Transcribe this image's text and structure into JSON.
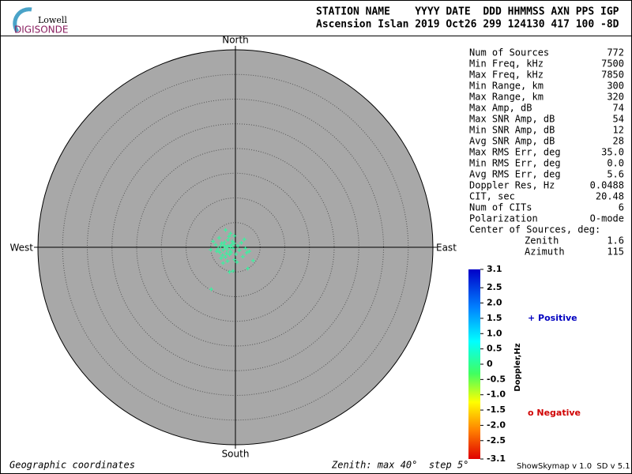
{
  "header": {
    "logo_top": "Lowell",
    "logo_bottom": "DIGISONDE",
    "line1": "STATION NAME    YYYY DATE  DDD HHMMSS AXN PPS IGP",
    "line2": "Ascension Islan 2019 Oct26 299 124130 417 100 -8D"
  },
  "stats": {
    "rows": [
      [
        "Num of Sources",
        "772"
      ],
      [
        "Min Freq, kHz",
        "7500"
      ],
      [
        "Max Freq, kHz",
        "7850"
      ],
      [
        "Min Range, km",
        "300"
      ],
      [
        "Max Range, km",
        "320"
      ],
      [
        "Max Amp, dB",
        "74"
      ],
      [
        "Max SNR Amp, dB",
        "54"
      ],
      [
        "Min SNR Amp, dB",
        "12"
      ],
      [
        "Avg SNR Amp, dB",
        "28"
      ],
      [
        "Max RMS Err, deg",
        "35.0"
      ],
      [
        "Min RMS Err, deg",
        "0.0"
      ],
      [
        "Avg RMS Err, deg",
        "5.6"
      ],
      [
        "Doppler Res, Hz",
        "0.0488"
      ],
      [
        "CIT, sec",
        "20.48"
      ],
      [
        "Num of CITs",
        "6"
      ],
      [
        "Polarization",
        "O-mode"
      ]
    ],
    "center_title": "Center of Sources, deg:",
    "center_rows": [
      [
        "Zenith",
        "1.6"
      ],
      [
        "Azimuth",
        "115"
      ]
    ]
  },
  "colorbar": {
    "label": "Doppler,Hz",
    "lim": [
      -3.1,
      3.1
    ],
    "ticks": [
      3.1,
      2.5,
      {
        "value": 2.0,
        "label": "2.0"
      },
      1.5,
      {
        "value": 1.0,
        "label": "1.0"
      },
      0.5,
      0,
      -0.5,
      {
        "value": -1.0,
        "label": "-1.0"
      },
      -1.5,
      {
        "value": -2.0,
        "label": "-2.0"
      },
      -2.5,
      -3.1
    ]
  },
  "legend": {
    "positive": "+ Positive",
    "negative": "o Negative"
  },
  "footer": {
    "left": "Geographic coordinates",
    "center": "Zenith: max 40°  step 5°",
    "right": "ShowSkymap v 1.0  SD v 5.1"
  },
  "chart_data": {
    "type": "scatter",
    "north": "North",
    "south": "South",
    "west": "West",
    "east": "East",
    "xlim": [
      -40,
      40
    ],
    "ylim": [
      -40,
      40
    ],
    "rings": [
      5,
      10,
      15,
      20,
      25,
      30,
      35,
      40
    ],
    "color": "#3cf0a0",
    "x": [
      -2.0,
      -1.5,
      -2.5,
      -1.0,
      -3.0,
      -2.2,
      -1.8,
      -0.8,
      -3.5,
      -2.8,
      -1.2,
      -0.5,
      -2.0,
      -1.5,
      -3.2,
      -0.3,
      -2.6,
      -1.0,
      -4.0,
      -1.7,
      -2.3,
      -0.9,
      -3.8,
      -2.9,
      -1.3,
      0.5,
      0.8,
      1.2,
      2.0,
      2.3,
      1.5,
      -4.5,
      -5.0,
      -2.0,
      -1.0,
      -0.2,
      -1.6,
      0.3,
      -2.5,
      1.8,
      2.8,
      3.6,
      2.5,
      -1.2,
      -0.5,
      -4.9,
      -0.2,
      -3.3,
      -0.6,
      0.1
    ],
    "y": [
      0.0,
      0.3,
      -0.5,
      -0.8,
      0.2,
      1.0,
      -1.2,
      0.5,
      -0.3,
      0.8,
      -1.5,
      -0.2,
      -2.0,
      1.5,
      -1.0,
      0.8,
      -1.6,
      0.1,
      0.5,
      -0.4,
      0.4,
      -1.1,
      -0.8,
      -2.2,
      2.2,
      0.3,
      -0.6,
      0.9,
      -0.2,
      -1.1,
      -1.9,
      1.2,
      -0.5,
      3.5,
      2.8,
      -2.5,
      -2.8,
      -3.0,
      -3.2,
      1.6,
      -0.8,
      -2.7,
      -4.3,
      -5.0,
      -4.8,
      -8.5,
      2.3,
      1.9,
      1.2,
      -1.4
    ]
  }
}
